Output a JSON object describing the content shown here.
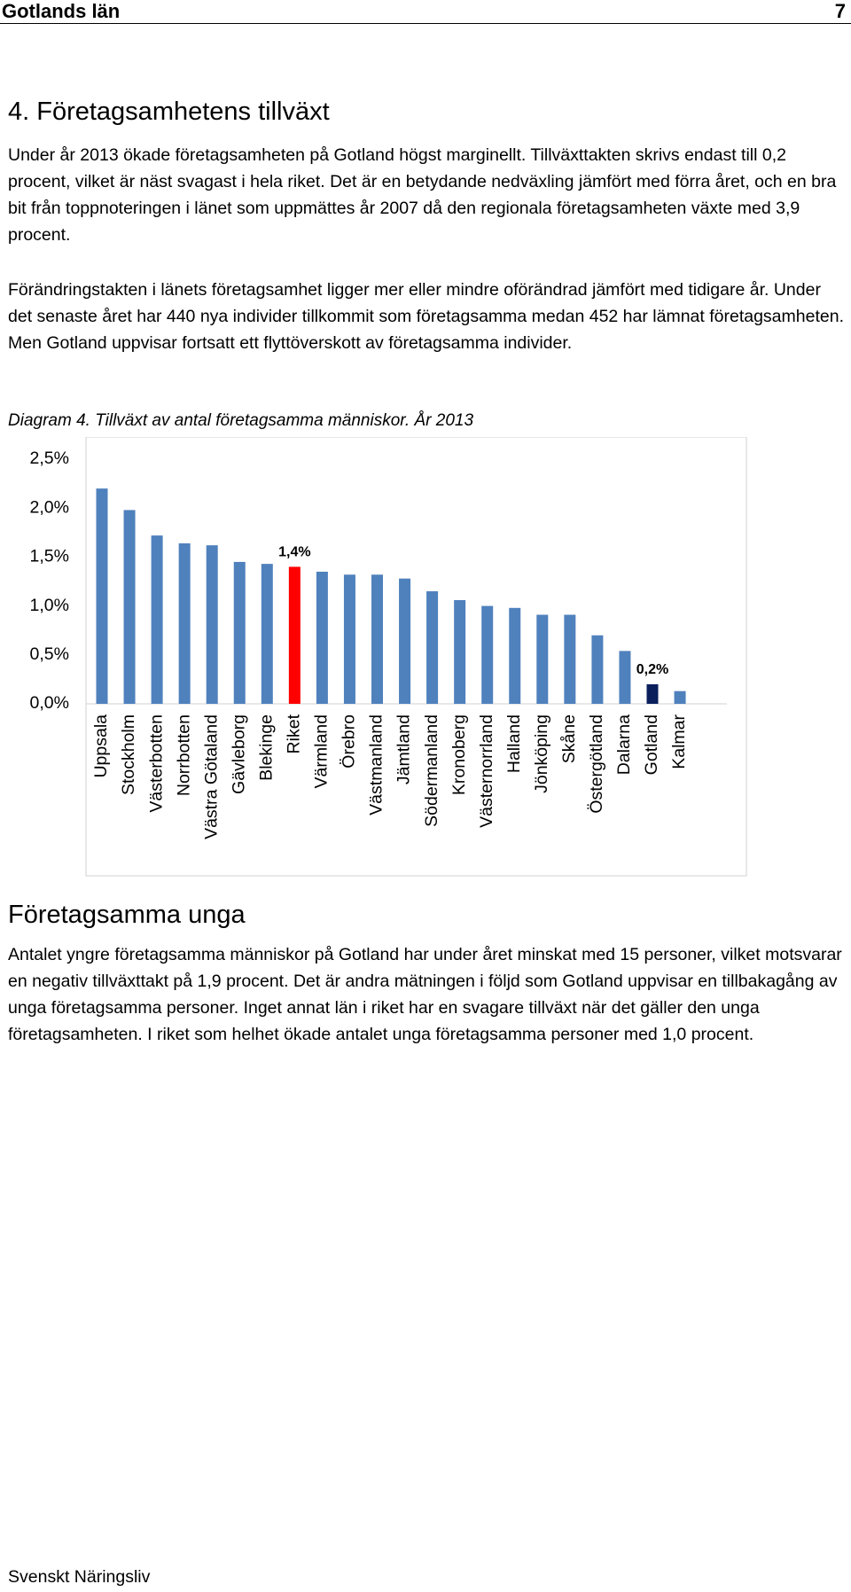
{
  "header": {
    "title": "Gotlands län",
    "page": "7"
  },
  "section_title": "4. Företagsamhetens tillväxt",
  "paragraphs": [
    "Under år 2013 ökade företagsamheten på Gotland högst marginellt. Tillväxttakten skrivs endast till 0,2 procent, vilket är näst svagast i hela riket. Det är en betydande nedväxling jämfört med förra året, och en bra bit från toppnoteringen i länet som uppmättes år 2007 då den regionala företagsamheten växte med 3,9 procent.",
    "Förändringstakten i länets företagsamhet ligger mer eller mindre oförändrad jämfört med tidigare år. Under det senaste året har 440 nya individer tillkommit som företagsamma medan 452 har lämnat företagsamheten. Men Gotland uppvisar fortsatt ett flyttöverskott av företagsamma individer."
  ],
  "chart_data": {
    "type": "bar",
    "title": "Diagram 4. Tillväxt av antal företagsamma människor. År 2013",
    "categories": [
      "Uppsala",
      "Stockholm",
      "Västerbotten",
      "Norrbotten",
      "Västra Götaland",
      "Gävleborg",
      "Blekinge",
      "Riket",
      "Värmland",
      "Örebro",
      "Västmanland",
      "Jämtland",
      "Södermanland",
      "Kronoberg",
      "Västernorrland",
      "Halland",
      "Jönköping",
      "Skåne",
      "Östergötland",
      "Dalarna",
      "Gotland",
      "Kalmar"
    ],
    "values": [
      2.2,
      1.98,
      1.72,
      1.64,
      1.62,
      1.45,
      1.43,
      1.4,
      1.35,
      1.32,
      1.32,
      1.28,
      1.15,
      1.06,
      1.0,
      0.98,
      0.91,
      0.91,
      0.7,
      0.54,
      0.2,
      0.13
    ],
    "value_labels": [
      null,
      null,
      null,
      null,
      null,
      null,
      null,
      "1,4%",
      null,
      null,
      null,
      null,
      null,
      null,
      null,
      null,
      null,
      null,
      null,
      null,
      "0,2%",
      null
    ],
    "colors": [
      "#4f81bd",
      "#4f81bd",
      "#4f81bd",
      "#4f81bd",
      "#4f81bd",
      "#4f81bd",
      "#4f81bd",
      "#ff0000",
      "#4f81bd",
      "#4f81bd",
      "#4f81bd",
      "#4f81bd",
      "#4f81bd",
      "#4f81bd",
      "#4f81bd",
      "#4f81bd",
      "#4f81bd",
      "#4f81bd",
      "#4f81bd",
      "#4f81bd",
      "#0a1f5c",
      "#4f81bd"
    ],
    "ylim": [
      0,
      2.5
    ],
    "yticks": [
      {
        "value": 0,
        "label": "0,0%"
      },
      {
        "value": 0.5,
        "label": "0,5%"
      },
      {
        "value": 1,
        "label": "1,0%"
      },
      {
        "value": 1.5,
        "label": "1,5%"
      },
      {
        "value": 2,
        "label": "2,0%"
      },
      {
        "value": 2.5,
        "label": "2,5%"
      }
    ],
    "grid": false
  },
  "subsection_title": "Företagsamma unga",
  "paragraphs2": [
    "Antalet yngre företagsamma människor på Gotland har under året minskat med 15 personer, vilket motsvarar en negativ tillväxttakt på 1,9 procent. Det är andra mätningen i följd som Gotland uppvisar en tillbakagång av unga företagsamma personer. Inget annat län i riket har en svagare tillväxt när det gäller den unga företagsamheten. I riket som helhet ökade antalet unga företagsamma personer med 1,0 procent."
  ],
  "footer": "Svenskt Näringsliv"
}
